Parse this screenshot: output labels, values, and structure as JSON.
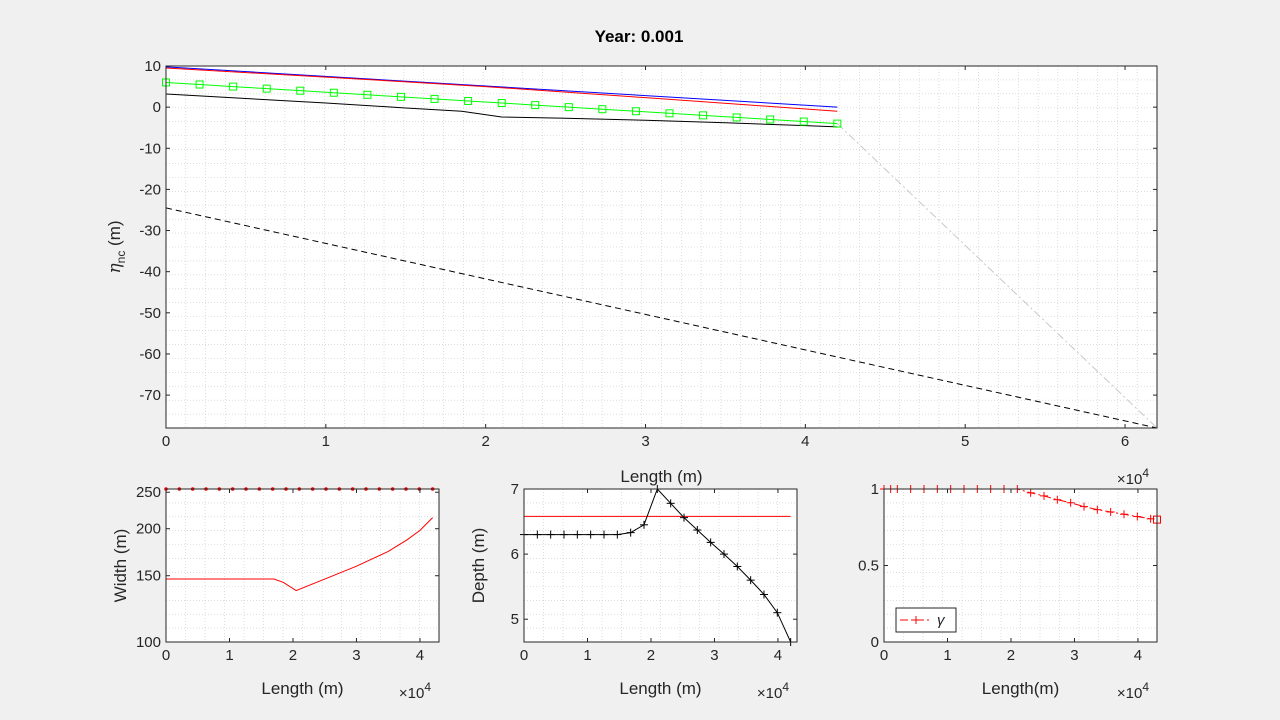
{
  "figure": {
    "title": "Year: 0.001",
    "background": "#f0f0f0",
    "axes_background": "#ffffff"
  },
  "chart_data": [
    {
      "id": "main",
      "type": "line",
      "xlabel": "Length (m)",
      "ylabel": "η",
      "ylabel_sub": "nc",
      "ylabel_unit": " (m)",
      "xlim": [
        0,
        62000
      ],
      "ylim": [
        -78,
        10
      ],
      "x_exponent_label": "×10",
      "x_exponent": "4",
      "xticks": [
        0,
        10000,
        20000,
        30000,
        40000,
        50000,
        60000
      ],
      "xtick_labels": [
        "0",
        "1",
        "2",
        "3",
        "4",
        "5",
        "6"
      ],
      "yticks": [
        10,
        0,
        -10,
        -20,
        -30,
        -40,
        -50,
        -60,
        -70
      ],
      "ytick_labels": [
        "10",
        "0",
        "-10",
        "-20",
        "-30",
        "-40",
        "-50",
        "-60",
        "-70"
      ],
      "grid": true,
      "series": [
        {
          "color": "#0000ff",
          "style": "solid",
          "x": [
            0,
            42000
          ],
          "y": [
            9.8,
            0
          ]
        },
        {
          "color": "#ff0000",
          "style": "solid",
          "x": [
            0,
            10000,
            20000,
            30000,
            42000
          ],
          "y": [
            9.5,
            7.3,
            5.0,
            2.3,
            -1.0
          ]
        },
        {
          "color": "#000000",
          "style": "solid",
          "x": [
            0,
            5000,
            10000,
            15000,
            18500,
            21000,
            25000,
            30000,
            35000,
            40000,
            42000
          ],
          "y": [
            3.2,
            2.1,
            1.0,
            -0.2,
            -1.0,
            -2.4,
            -2.7,
            -3.2,
            -3.8,
            -4.5,
            -4.8
          ]
        },
        {
          "color": "#00ff00",
          "style": "solid",
          "marker": "square",
          "x": [
            0,
            2100,
            4200,
            6300,
            8400,
            10500,
            12600,
            14700,
            16800,
            18900,
            21000,
            23100,
            25200,
            27300,
            29400,
            31500,
            33600,
            35700,
            37800,
            39900,
            42000
          ],
          "y": [
            6.0,
            5.5,
            5.0,
            4.5,
            4.0,
            3.5,
            3.0,
            2.5,
            2.0,
            1.5,
            1.0,
            0.5,
            0.0,
            -0.5,
            -1.0,
            -1.5,
            -2.0,
            -2.5,
            -3.0,
            -3.5,
            -4.0
          ]
        },
        {
          "color": "#000000",
          "style": "dashed",
          "x": [
            0,
            62000
          ],
          "y": [
            -24.5,
            -78
          ]
        },
        {
          "color": "#c8c8c8",
          "style": "dashdot",
          "x": [
            42000,
            62000
          ],
          "y": [
            -4.0,
            -78
          ]
        }
      ]
    },
    {
      "id": "width",
      "type": "line",
      "xlabel": "Length (m)",
      "ylabel": "Width (m)",
      "xlim": [
        0,
        43000
      ],
      "ylim": [
        100,
        255
      ],
      "y_scale": "log",
      "x_exponent_label": "×10",
      "x_exponent": "4",
      "xticks": [
        0,
        10000,
        20000,
        30000,
        40000
      ],
      "xtick_labels": [
        "0",
        "1",
        "2",
        "3",
        "4"
      ],
      "yticks": [
        100,
        150,
        200,
        250
      ],
      "ytick_labels": [
        "100",
        "150",
        "200",
        "250"
      ],
      "grid": true,
      "series": [
        {
          "color": "#0000ff",
          "style": "solid",
          "marker": "dot",
          "marker_color": "#ff0000",
          "x": [
            0,
            2100,
            4200,
            6300,
            8400,
            10500,
            12600,
            14700,
            16800,
            18900,
            21000,
            23100,
            25200,
            27300,
            29400,
            31500,
            33600,
            35700,
            37800,
            39900,
            42000
          ],
          "y": [
            255,
            255,
            255,
            255,
            255,
            255,
            255,
            255,
            255,
            255,
            255,
            255,
            255,
            255,
            255,
            255,
            255,
            255,
            255,
            255,
            255
          ]
        },
        {
          "color": "#ff0000",
          "style": "solid",
          "x": [
            0,
            10000,
            17000,
            18500,
            20500,
            25000,
            30000,
            35000,
            38000,
            40000,
            42000
          ],
          "y": [
            147,
            147,
            147,
            144,
            137,
            147,
            159,
            174,
            187,
            198,
            214
          ]
        }
      ]
    },
    {
      "id": "depth",
      "type": "line",
      "xlabel": "Length (m)",
      "ylabel": "Depth (m)",
      "xlim": [
        0,
        43000
      ],
      "ylim": [
        4.65,
        7.0
      ],
      "x_exponent_label": "×10",
      "x_exponent": "4",
      "xticks": [
        0,
        10000,
        20000,
        30000,
        40000
      ],
      "xtick_labels": [
        "0",
        "1",
        "2",
        "3",
        "4"
      ],
      "yticks": [
        5,
        6,
        7
      ],
      "ytick_labels": [
        "5",
        "6",
        "7"
      ],
      "grid": true,
      "series": [
        {
          "color": "#ff0000",
          "style": "solid",
          "x": [
            0,
            42000
          ],
          "y": [
            6.58,
            6.58
          ]
        },
        {
          "color": "#000000",
          "style": "solid",
          "marker": "plus",
          "x": [
            0,
            2100,
            4200,
            6300,
            8400,
            10500,
            12600,
            14700,
            16800,
            18900,
            21000,
            23100,
            25200,
            27300,
            29400,
            31500,
            33600,
            35700,
            37800,
            39900,
            42000
          ],
          "y": [
            6.3,
            6.3,
            6.3,
            6.3,
            6.3,
            6.3,
            6.3,
            6.3,
            6.33,
            6.45,
            7.0,
            6.78,
            6.56,
            6.37,
            6.18,
            6.0,
            5.81,
            5.6,
            5.38,
            5.1,
            4.65
          ]
        }
      ]
    },
    {
      "id": "gamma",
      "type": "line",
      "xlabel": "Length(m)",
      "ylabel": "",
      "xlim": [
        0,
        43000
      ],
      "ylim": [
        0,
        1
      ],
      "x_exponent_label": "×10",
      "x_exponent": "4",
      "xticks": [
        0,
        10000,
        20000,
        30000,
        40000
      ],
      "xtick_labels": [
        "0",
        "1",
        "2",
        "3",
        "4"
      ],
      "yticks": [
        0,
        0.5,
        1
      ],
      "ytick_labels": [
        "0",
        "0.5",
        "1"
      ],
      "grid": true,
      "legend": {
        "entries": [
          "γ"
        ],
        "placement": "bottom-left"
      },
      "series": [
        {
          "name": "γ",
          "color": "#ff0000",
          "style": "dashdot",
          "marker": "plus",
          "x": [
            0,
            1050,
            2100,
            4200,
            6300,
            8400,
            10500,
            12600,
            14700,
            16800,
            18900,
            21000,
            23100,
            25200,
            27300,
            29400,
            31500,
            33600,
            35700,
            37800,
            39900,
            42000
          ],
          "y": [
            1,
            1,
            1,
            1,
            1,
            1,
            1,
            1,
            1,
            1,
            1,
            1,
            0.975,
            0.955,
            0.93,
            0.91,
            0.885,
            0.865,
            0.85,
            0.835,
            0.82,
            0.805
          ]
        },
        {
          "color": "#ff0000",
          "style": "none",
          "marker": "square",
          "x": [
            43000
          ],
          "y": [
            0.8
          ]
        }
      ]
    }
  ]
}
